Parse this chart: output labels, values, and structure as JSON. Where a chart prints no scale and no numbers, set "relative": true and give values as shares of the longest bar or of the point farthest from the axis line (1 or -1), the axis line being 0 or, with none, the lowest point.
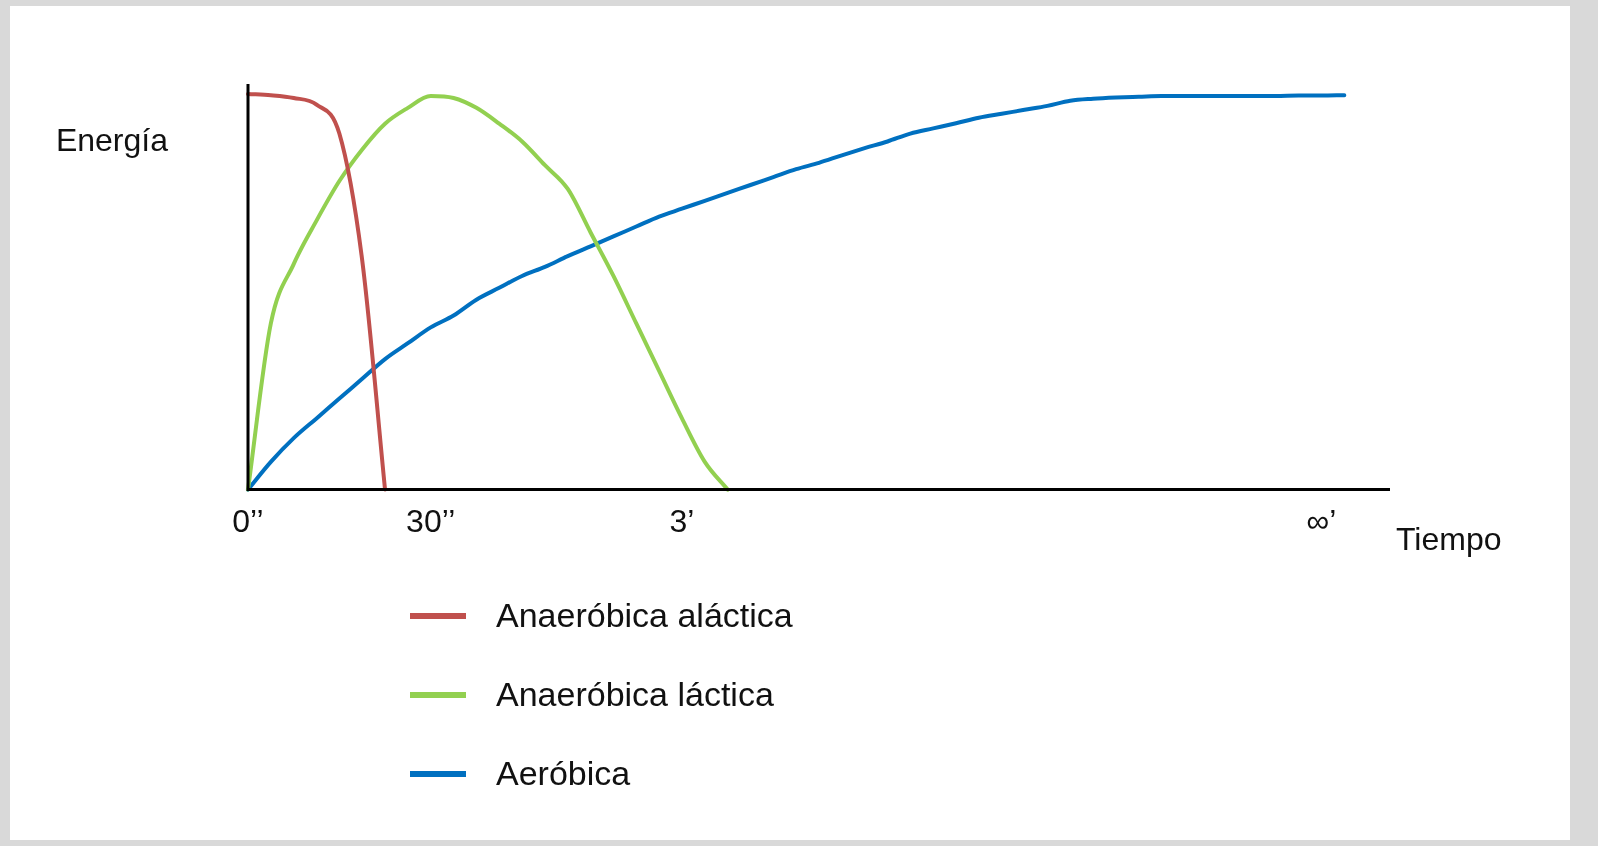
{
  "chart_data": {
    "type": "line",
    "relative": true,
    "ylabel": "Energía",
    "xlabel": "Tiempo",
    "categories": [
      "0’’",
      null,
      null,
      null,
      null,
      null,
      null,
      null,
      "30’’",
      null,
      null,
      null,
      null,
      null,
      null,
      null,
      null,
      null,
      null,
      "3’",
      null,
      null,
      null,
      null,
      null,
      null,
      null,
      null,
      null,
      null,
      null,
      null,
      null,
      null,
      null,
      null,
      null,
      null,
      null,
      null,
      null,
      null,
      null,
      null,
      null,
      null,
      null,
      "∞’",
      null,
      null,
      null
    ],
    "grid": false,
    "legend": "bottom",
    "marker": "none",
    "line_style": "solid",
    "series": [
      {
        "name": "Anaeróbica aláctica",
        "color": "#c0504d",
        "values": [
          1,
          0.997,
          0.99,
          0.973,
          0.9,
          0.58,
          0,
          null,
          null,
          null,
          null,
          null,
          null,
          null,
          null,
          null,
          null,
          null,
          null,
          null,
          null,
          null,
          null,
          null,
          null,
          null,
          null,
          null,
          null,
          null,
          null,
          null,
          null,
          null,
          null,
          null,
          null,
          null,
          null,
          null,
          null,
          null,
          null,
          null,
          null,
          null,
          null,
          null,
          null,
          null,
          null
        ]
      },
      {
        "name": "Anaeróbica láctica",
        "color": "#92d050",
        "values": [
          0,
          0.42,
          0.57,
          0.68,
          0.78,
          0.86,
          0.925,
          0.965,
          0.995,
          0.99,
          0.965,
          0.925,
          0.88,
          0.82,
          0.76,
          0.65,
          0.54,
          0.42,
          0.3,
          0.18,
          0.07,
          0,
          null,
          null,
          null,
          null,
          null,
          null,
          null,
          null,
          null,
          null,
          null,
          null,
          null,
          null,
          null,
          null,
          null,
          null,
          null,
          null,
          null,
          null,
          null,
          null,
          null,
          null,
          null,
          null,
          null
        ]
      },
      {
        "name": "Aeróbica",
        "color": "#0070c0",
        "values": [
          0,
          0.07,
          0.13,
          0.18,
          0.23,
          0.28,
          0.33,
          0.37,
          0.41,
          0.44,
          0.48,
          0.51,
          0.54,
          0.563,
          0.59,
          0.615,
          0.64,
          0.665,
          0.69,
          0.71,
          0.73,
          0.75,
          0.77,
          0.79,
          0.81,
          0.826,
          0.845,
          0.863,
          0.88,
          0.9,
          0.913,
          0.926,
          0.94,
          0.95,
          0.96,
          0.97,
          0.983,
          0.988,
          0.991,
          0.993,
          0.995,
          0.995,
          0.995,
          0.995,
          0.995,
          0.995,
          0.996,
          0.996,
          0.997,
          null,
          null
        ]
      }
    ]
  }
}
